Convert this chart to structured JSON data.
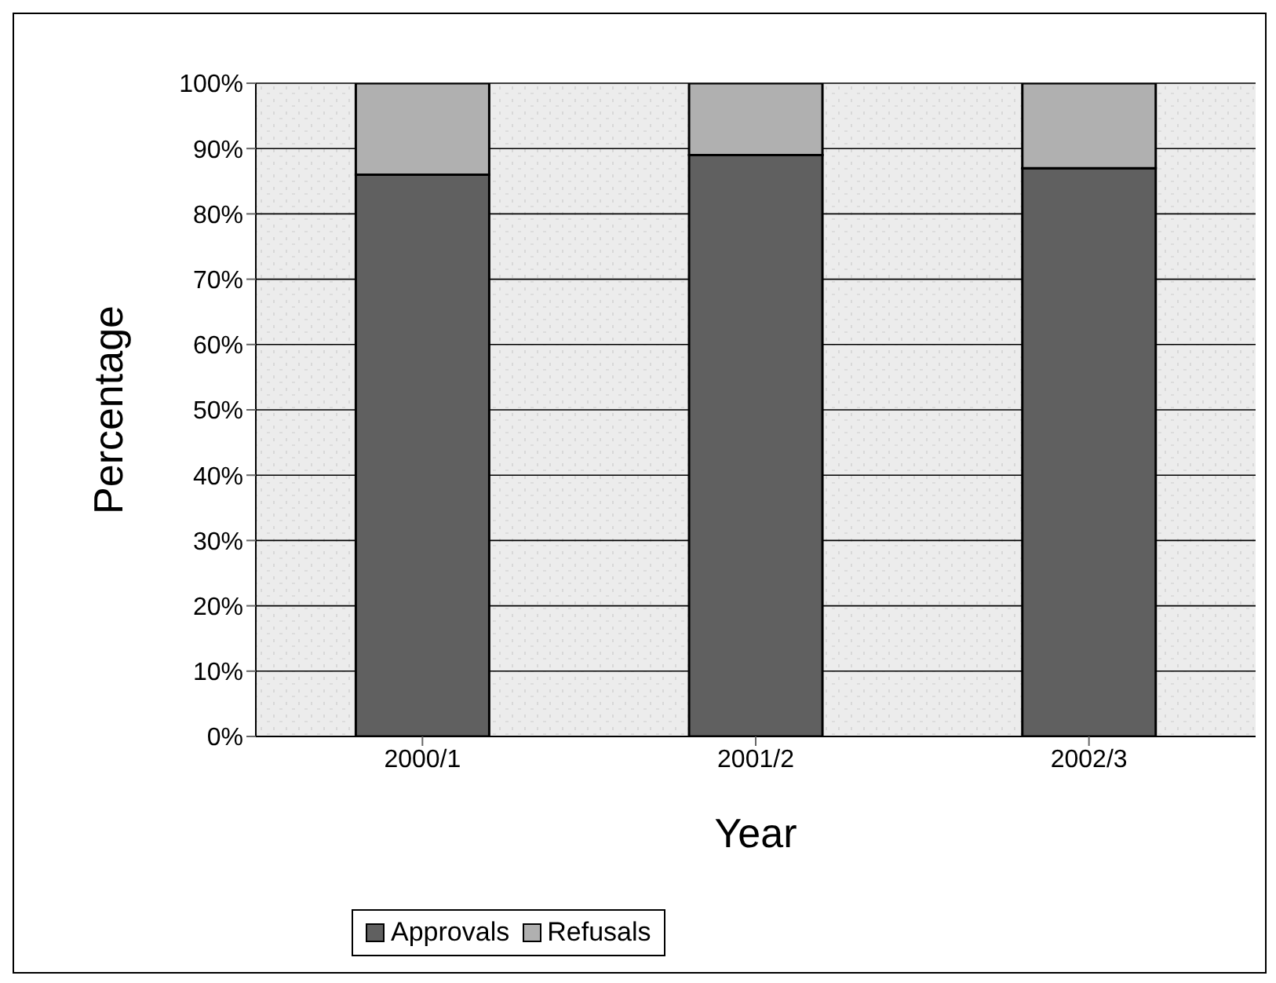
{
  "chart_data": {
    "type": "bar",
    "stacked": true,
    "xlabel": "Year",
    "ylabel": "Percentage",
    "categories": [
      "2000/1",
      "2001/2",
      "2002/3"
    ],
    "series": [
      {
        "name": "Approvals",
        "color": "#606060",
        "values": [
          86,
          89,
          87
        ]
      },
      {
        "name": "Refusals",
        "color": "#b0b0b0",
        "values": [
          14,
          11,
          13
        ]
      }
    ],
    "ylim": [
      0,
      100
    ],
    "yticks": [
      {
        "value": 0,
        "label": "0%"
      },
      {
        "value": 10,
        "label": "10%"
      },
      {
        "value": 20,
        "label": "20%"
      },
      {
        "value": 30,
        "label": "30%"
      },
      {
        "value": 40,
        "label": "40%"
      },
      {
        "value": 50,
        "label": "50%"
      },
      {
        "value": 60,
        "label": "60%"
      },
      {
        "value": 70,
        "label": "70%"
      },
      {
        "value": 80,
        "label": "80%"
      },
      {
        "value": 90,
        "label": "90%"
      },
      {
        "value": 100,
        "label": "100%"
      }
    ],
    "grid": "y",
    "legend": "bottom"
  }
}
